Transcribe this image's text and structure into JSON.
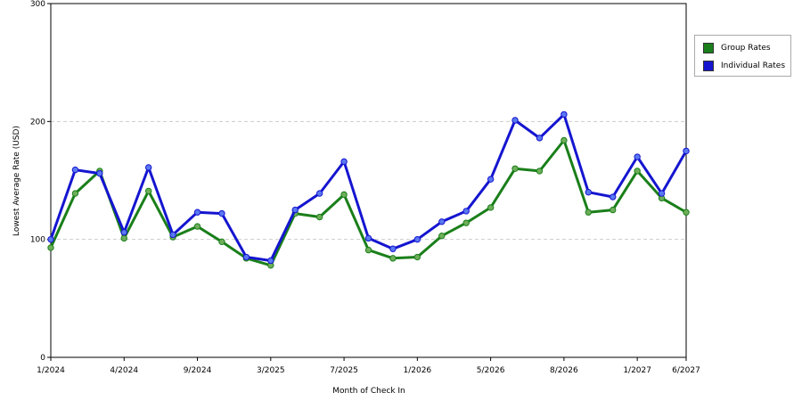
{
  "chart_data": {
    "type": "line",
    "title": "",
    "xlabel": "Month of Check In",
    "ylabel": "Lowest Average Rate (USD)",
    "ylim": [
      0,
      300
    ],
    "yticks": [
      0,
      100,
      200,
      300
    ],
    "grid": true,
    "legend_position": "right",
    "x_labels": [
      "1/2024",
      "4/2024",
      "9/2024",
      "3/2025",
      "7/2025",
      "1/2026",
      "5/2026",
      "8/2026",
      "1/2027",
      "6/2027"
    ],
    "x_label_index": [
      0,
      3,
      6,
      9,
      12,
      15,
      18,
      21,
      24,
      26
    ],
    "series": [
      {
        "name": "Group Rates",
        "color": "#1a7f1a",
        "values": [
          93,
          139,
          158,
          101,
          141,
          102,
          111,
          98,
          84,
          78,
          122,
          119,
          138,
          91,
          84,
          85,
          103,
          114,
          127,
          160,
          158,
          184,
          123,
          125,
          158,
          135,
          123
        ]
      },
      {
        "name": "Individual Rates",
        "color": "#1515d0",
        "values": [
          100,
          159,
          156,
          106,
          161,
          104,
          123,
          122,
          85,
          82,
          125,
          139,
          166,
          101,
          92,
          100,
          115,
          124,
          151,
          201,
          186,
          206,
          140,
          136,
          170,
          139,
          175
        ]
      }
    ]
  }
}
